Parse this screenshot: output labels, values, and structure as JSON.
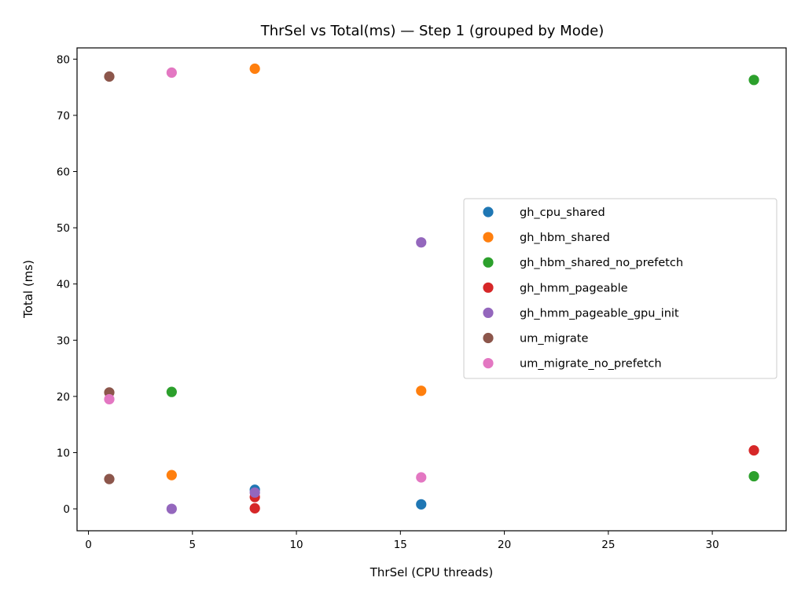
{
  "chart_data": {
    "type": "scatter",
    "title": "ThrSel vs Total(ms) — Step 1 (grouped by Mode)",
    "xlabel": "ThrSel (CPU threads)",
    "ylabel": "Total (ms)",
    "xlim": [
      -0.55,
      33.55
    ],
    "ylim": [
      -3.9,
      82.0
    ],
    "xticks": [
      0,
      5,
      10,
      15,
      20,
      25,
      30
    ],
    "yticks": [
      0,
      10,
      20,
      30,
      40,
      50,
      60,
      70,
      80
    ],
    "grid": false,
    "legend_position": "center-right",
    "series": [
      {
        "name": "gh_cpu_shared",
        "color": "#1f77b4",
        "points": [
          [
            8,
            3.4
          ],
          [
            16,
            0.8
          ]
        ]
      },
      {
        "name": "gh_hbm_shared",
        "color": "#ff7f0e",
        "points": [
          [
            8,
            78.3
          ],
          [
            16,
            21.0
          ],
          [
            4,
            6.0
          ]
        ]
      },
      {
        "name": "gh_hbm_shared_no_prefetch",
        "color": "#2ca02c",
        "points": [
          [
            32,
            76.3
          ],
          [
            4,
            20.8
          ],
          [
            32,
            5.8
          ]
        ]
      },
      {
        "name": "gh_hmm_pageable",
        "color": "#d62728",
        "points": [
          [
            32,
            10.4
          ],
          [
            8,
            2.1
          ],
          [
            8,
            0.1
          ]
        ]
      },
      {
        "name": "gh_hmm_pageable_gpu_init",
        "color": "#9467bd",
        "points": [
          [
            16,
            47.4
          ],
          [
            8,
            2.9
          ],
          [
            4,
            0.0
          ]
        ]
      },
      {
        "name": "um_migrate",
        "color": "#8c564b",
        "points": [
          [
            1,
            76.9
          ],
          [
            1,
            20.7
          ],
          [
            1,
            5.3
          ]
        ]
      },
      {
        "name": "um_migrate_no_prefetch",
        "color": "#e377c2",
        "points": [
          [
            4,
            77.6
          ],
          [
            1,
            19.5
          ],
          [
            16,
            5.6
          ]
        ]
      }
    ]
  }
}
